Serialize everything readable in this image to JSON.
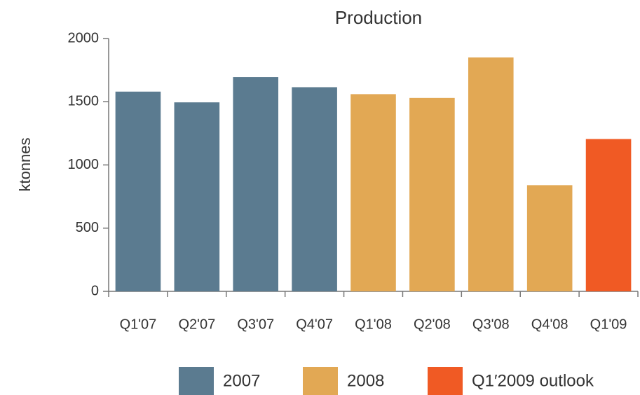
{
  "chart_data": {
    "type": "bar",
    "title": "Production",
    "y_label": "ktonnes",
    "categories": [
      "Q1'07",
      "Q2'07",
      "Q3'07",
      "Q4'07",
      "Q1'08",
      "Q2'08",
      "Q3'08",
      "Q4'08",
      "Q1'09"
    ],
    "series": [
      {
        "name": "2007",
        "color": "#5b7b90",
        "values": [
          1580,
          1495,
          1695,
          1615,
          null,
          null,
          null,
          null,
          null
        ]
      },
      {
        "name": "2008",
        "color": "#e2a854",
        "values": [
          null,
          null,
          null,
          null,
          1560,
          1530,
          1850,
          840,
          null
        ]
      },
      {
        "name": "Q1′2009 outlook",
        "color": "#f05a24",
        "values": [
          null,
          null,
          null,
          null,
          null,
          null,
          null,
          null,
          1205
        ]
      }
    ],
    "ylim": [
      0,
      2000
    ],
    "yticks": [
      0,
      500,
      1000,
      1500,
      2000
    ],
    "grid": false,
    "legend": "bottom"
  }
}
